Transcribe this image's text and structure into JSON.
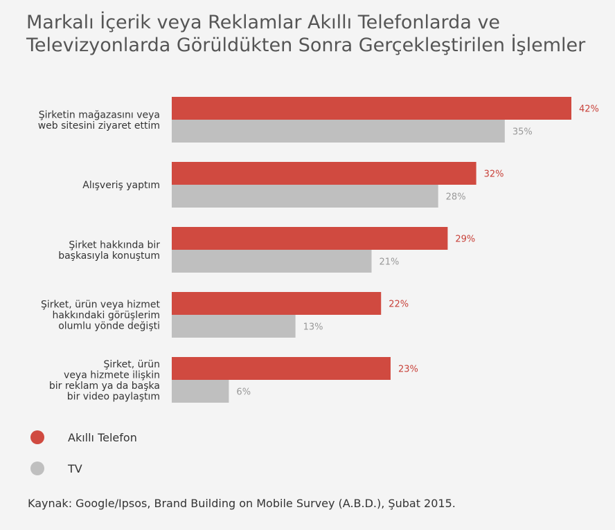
{
  "chart_data": {
    "type": "bar",
    "orientation": "horizontal",
    "title": "Markalı İçerik veya Reklamlar Akıllı Telefonlarda ve Televizyonlarda Görüldükten Sonra Gerçekleştirilen İşlemler",
    "categories": [
      [
        "Şirketin mağazasını veya",
        "web sitesini ziyaret ettim"
      ],
      [
        "Alışveriş yaptım"
      ],
      [
        "Şirket hakkında bir",
        "başkasıyla konuştum"
      ],
      [
        "Şirket, ürün veya hizmet",
        "hakkındaki görüşlerim",
        "olumlu yönde değişti"
      ],
      [
        "Şirket, ürün",
        "veya hizmete ilişkin",
        "bir reklam ya da başka",
        "bir video paylaştım"
      ]
    ],
    "series": [
      {
        "name": "Akıllı Telefon",
        "color": "#d04a40",
        "label_color": "#c8423a",
        "values": [
          42,
          32,
          29,
          22,
          23
        ],
        "labels": [
          "42%",
          "32%",
          "29%",
          "22%",
          "23%"
        ]
      },
      {
        "name": "TV",
        "color": "#bfbfbf",
        "label_color": "#999999",
        "values": [
          35,
          28,
          21,
          13,
          6
        ],
        "labels": [
          "35%",
          "28%",
          "21%",
          "13%",
          "6%"
        ]
      }
    ],
    "xlim": [
      0,
      42
    ],
    "grid": false,
    "legend_position": "bottom-left"
  },
  "source": "Kaynak: Google/Ipsos, Brand Building on Mobile Survey (A.B.D.), Şubat 2015."
}
